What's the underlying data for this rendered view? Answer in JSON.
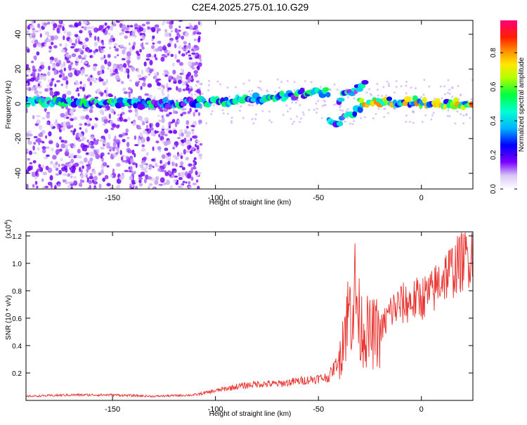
{
  "title": "C2E4.2025.275.01.10.G29",
  "colors": {
    "axis": "#000000",
    "snr_line": "#e8302c"
  },
  "chart_data": [
    {
      "type": "heatmap",
      "xlabel": "Height of straight line (km)",
      "ylabel": "Frequency (Hz)",
      "xlim": [
        -192,
        25
      ],
      "ylim": [
        -49,
        48
      ],
      "xticks": [
        -150,
        -100,
        -50,
        0
      ],
      "yticks": [
        -40,
        -20,
        0,
        20,
        40
      ],
      "colorbar": {
        "label": "Normalized spectral amplitude",
        "range": [
          0,
          0.99
        ],
        "ticks": [
          0.0,
          0.2,
          0.4,
          0.6,
          0.8
        ],
        "tick_labels": [
          "0.0",
          "0.2",
          "0.4",
          "0.6",
          "0.8"
        ]
      },
      "tracks": [
        {
          "x": [
            -192,
            -170,
            -150,
            -130,
            -110,
            -90,
            -70,
            -55,
            -45
          ],
          "y": [
            1,
            1,
            0,
            0,
            1,
            2,
            4,
            6,
            7
          ],
          "amplitude": 0.4
        },
        {
          "x": [
            -45,
            -38,
            -32,
            -28
          ],
          "y": [
            -11,
            -9,
            -5,
            -2
          ],
          "amplitude": 0.35
        },
        {
          "x": [
            -40,
            -35,
            -30,
            -27
          ],
          "y": [
            3,
            6,
            10,
            14
          ],
          "amplitude": 0.35
        },
        {
          "x": [
            -30,
            -20,
            -10,
            0,
            10,
            25
          ],
          "y": [
            1,
            1,
            1,
            1,
            0,
            0
          ],
          "amplitude": 0.6
        }
      ]
    },
    {
      "type": "line",
      "xlabel": "Height of straight line (km)",
      "ylabel": "SNR (10 * v/v)",
      "y_multiplier_label": "(x10",
      "y_multiplier_exp": "4",
      "y_multiplier_close": ")",
      "xlim": [
        -192,
        25
      ],
      "ylim": [
        0,
        1.23
      ],
      "xticks": [
        -150,
        -100,
        -50,
        0
      ],
      "yticks": [
        0.2,
        0.4,
        0.6,
        0.8,
        1.0,
        1.2
      ],
      "ytick_labels": [
        "0.2",
        "0.4",
        "0.6",
        "0.8",
        "1.0",
        "1.2"
      ],
      "series": [
        {
          "x": [
            -192,
            -170,
            -150,
            -130,
            -110,
            -100,
            -90,
            -80,
            -70,
            -60,
            -50,
            -45,
            -40,
            -38,
            -35,
            -32,
            -30,
            -25,
            -20,
            -15,
            -10,
            -5,
            0,
            5,
            10,
            15,
            20,
            25
          ],
          "values": [
            0.03,
            0.04,
            0.04,
            0.03,
            0.04,
            0.07,
            0.1,
            0.12,
            0.12,
            0.14,
            0.16,
            0.17,
            0.3,
            0.5,
            0.65,
            0.8,
            0.55,
            0.48,
            0.5,
            0.65,
            0.7,
            0.72,
            0.75,
            0.78,
            0.9,
            0.95,
            1.02,
            1.08
          ]
        }
      ]
    }
  ]
}
